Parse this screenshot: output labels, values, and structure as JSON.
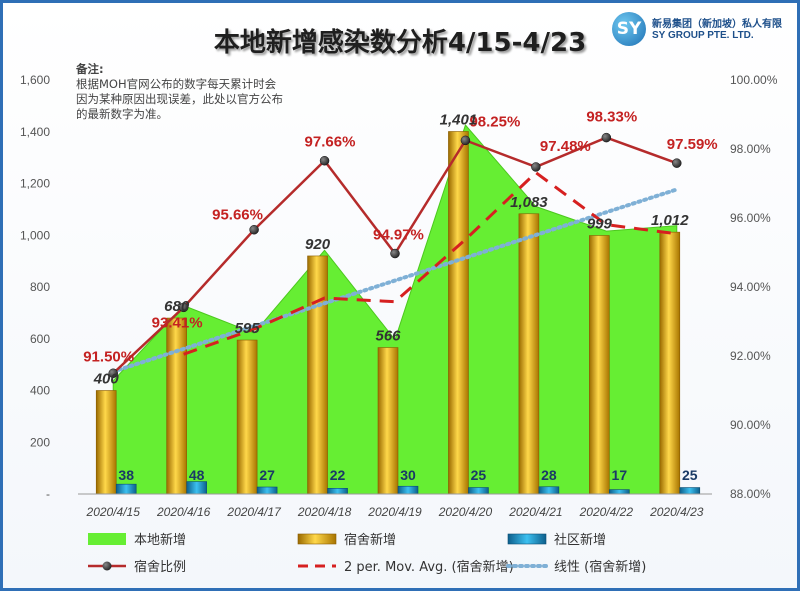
{
  "title": "本地新增感染数分析4/15-4/23",
  "note": {
    "heading": "备注:",
    "lines": [
      "根据MOH官网公布的数字每天累计时会",
      "因为某种原因出现误差，此处以官方公布",
      "的最新数字为准。"
    ]
  },
  "logo": {
    "mark": "SY",
    "cn_name": "新易集团（新加坡）私人有限",
    "en_name": "SY GROUP PTE. LTD."
  },
  "colors": {
    "area": "#66ee33",
    "dorm_bar": "#e0a800",
    "community_bar": "#1a9fd6",
    "ratio_line": "#b52b2b",
    "mov_avg": "#d62020",
    "linear": "#7fb0d6",
    "frame": "#2f6fb6"
  },
  "chart_data": {
    "type": "bar",
    "categories": [
      "2020/4/15",
      "2020/4/16",
      "2020/4/17",
      "2020/4/18",
      "2020/4/19",
      "2020/4/20",
      "2020/4/21",
      "2020/4/22",
      "2020/4/23"
    ],
    "series": [
      {
        "name": "本地新增",
        "kind": "area",
        "values": [
          438,
          728,
          622,
          942,
          596,
          1426,
          1111,
          1016,
          1037
        ]
      },
      {
        "name": "宿舍新增",
        "kind": "bar",
        "values": [
          400,
          680,
          595,
          920,
          566,
          1401,
          1083,
          999,
          1012
        ],
        "labels": [
          "400",
          "680",
          "595",
          "920",
          "566",
          "1,401",
          "1,083",
          "999",
          "1,012"
        ]
      },
      {
        "name": "社区新增",
        "kind": "bar",
        "values": [
          38,
          48,
          27,
          22,
          30,
          25,
          28,
          17,
          25
        ],
        "labels": [
          "38",
          "48",
          "27",
          "22",
          "30",
          "25",
          "28",
          "17",
          "25"
        ]
      },
      {
        "name": "宿舍比例",
        "kind": "line",
        "axis": "right",
        "values": [
          91.5,
          93.41,
          95.66,
          97.66,
          94.97,
          98.25,
          97.48,
          98.33,
          97.59
        ],
        "labels": [
          "91.50%",
          "93.41%",
          "95.66%",
          "97.66%",
          "94.97%",
          "98.25%",
          "97.48%",
          "98.33%",
          "97.59%"
        ]
      },
      {
        "name": "2 per. Mov. Avg. (宿舍新增)",
        "kind": "dash",
        "values": [
          null,
          540,
          637.5,
          757.5,
          743,
          983.5,
          1242,
          1041,
          1005.5
        ]
      },
      {
        "name": "线性 (宿舍新增)",
        "kind": "dotted",
        "values": [
          473,
          561,
          649,
          737,
          825,
          913,
          1001,
          1089,
          1177
        ]
      }
    ],
    "yleft": {
      "ylim": [
        0,
        1600
      ],
      "ticks": [
        "-",
        "200",
        "400",
        "600",
        "800",
        "1,000",
        "1,200",
        "1,400",
        "1,600"
      ]
    },
    "yright": {
      "ylim": [
        88,
        100
      ],
      "ticks": [
        "88.00%",
        "90.00%",
        "92.00%",
        "94.00%",
        "96.00%",
        "98.00%",
        "100.00%"
      ]
    },
    "grid": false,
    "legend": [
      {
        "label": "本地新增",
        "kind": "area"
      },
      {
        "label": "宿舍新增",
        "kind": "bar-gold"
      },
      {
        "label": "社区新增",
        "kind": "bar-blue"
      },
      {
        "label": "宿舍比例",
        "kind": "line-dot"
      },
      {
        "label": "2 per. Mov. Avg. (宿舍新增)",
        "kind": "dash"
      },
      {
        "label": "线性 (宿舍新增)",
        "kind": "dotted"
      }
    ]
  }
}
